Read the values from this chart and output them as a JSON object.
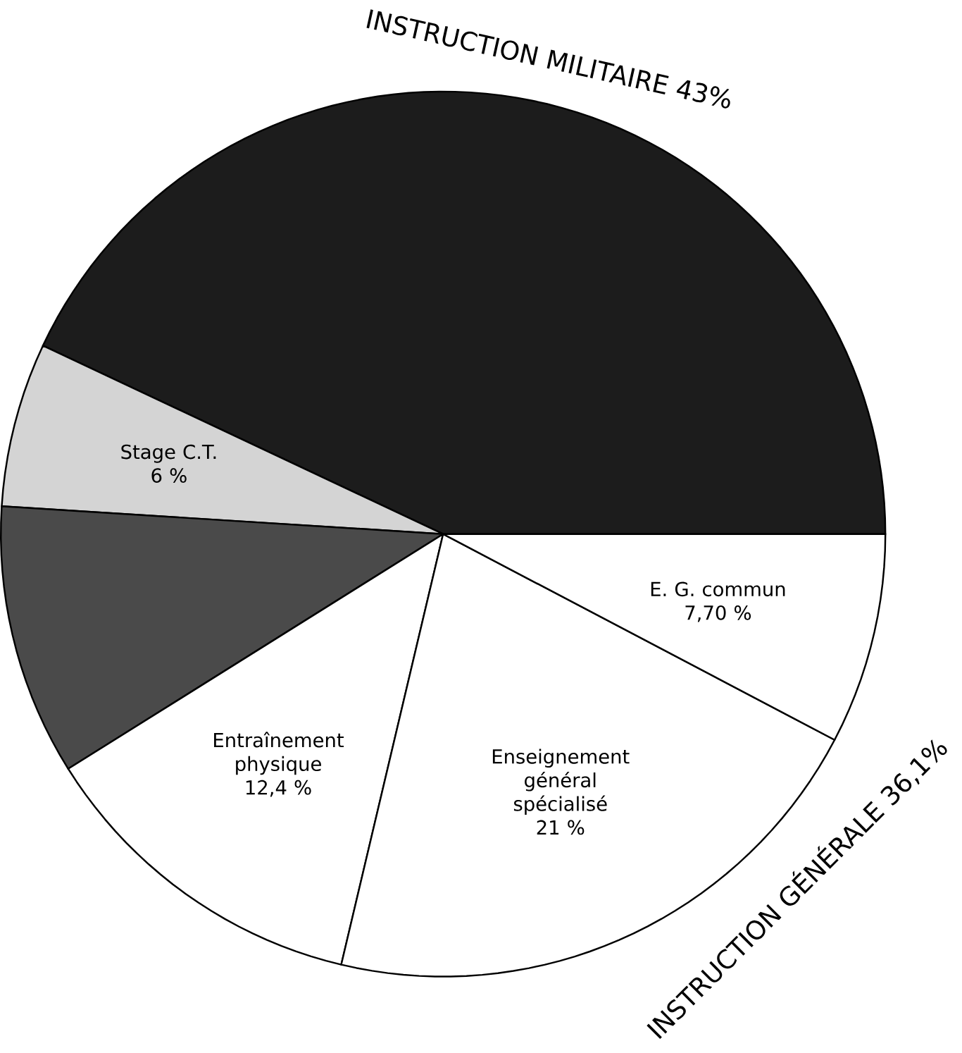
{
  "chart_data": {
    "type": "pie",
    "categories": [
      "INSTRUCTION MILITAIRE",
      "Stage C.T.",
      null,
      "Entraînement physique",
      "Enseignement général spécialisé",
      "E. G. commun"
    ],
    "values": [
      43,
      6,
      9.9,
      12.4,
      21,
      7.7
    ],
    "value_labels": [
      "43%",
      "6 %",
      null,
      "12,4 %",
      "21 %",
      "7,70 %"
    ],
    "colors": [
      "#1c1c1c",
      "#d4d4d4",
      "#4a4a4a",
      "#ffffff",
      "#ffffff",
      "#ffffff"
    ],
    "annotations": [
      "INSTRUCTION GÉNÉRALE 36,1%"
    ]
  }
}
